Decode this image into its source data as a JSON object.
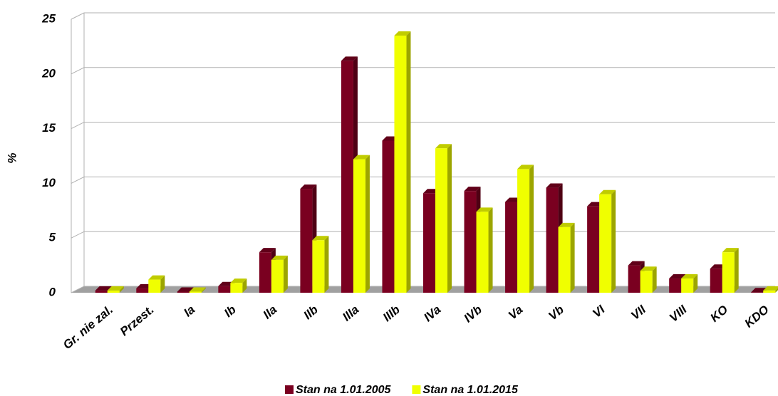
{
  "chart_data": {
    "type": "bar",
    "y_label": "%",
    "categories": [
      "Gr. nie zal.",
      "Przest.",
      "Ia",
      "Ib",
      "IIa",
      "IIb",
      "IIIa",
      "IIIb",
      "IVa",
      "IVb",
      "Va",
      "Vb",
      "VI",
      "VII",
      "VIII",
      "KO",
      "KDO"
    ],
    "series": [
      {
        "name": "Stan na 1.01.2005",
        "color": "#7a0020",
        "values": [
          0.2,
          0.4,
          0.1,
          0.6,
          3.7,
          9.5,
          21.2,
          13.9,
          9.1,
          9.3,
          8.3,
          9.6,
          7.9,
          2.5,
          1.3,
          2.2,
          0.05
        ]
      },
      {
        "name": "Stan na 1.01.2015",
        "color": "#f0ff00",
        "values": [
          0.2,
          1.2,
          0.1,
          0.9,
          3.0,
          4.8,
          12.2,
          23.5,
          13.2,
          7.4,
          11.3,
          6.0,
          9.0,
          2.0,
          1.3,
          3.7,
          0.2
        ]
      }
    ],
    "ylim": [
      0,
      25
    ],
    "yticks": [
      0,
      5,
      10,
      15,
      20,
      25
    ],
    "grid": true,
    "legend": "bottom"
  }
}
